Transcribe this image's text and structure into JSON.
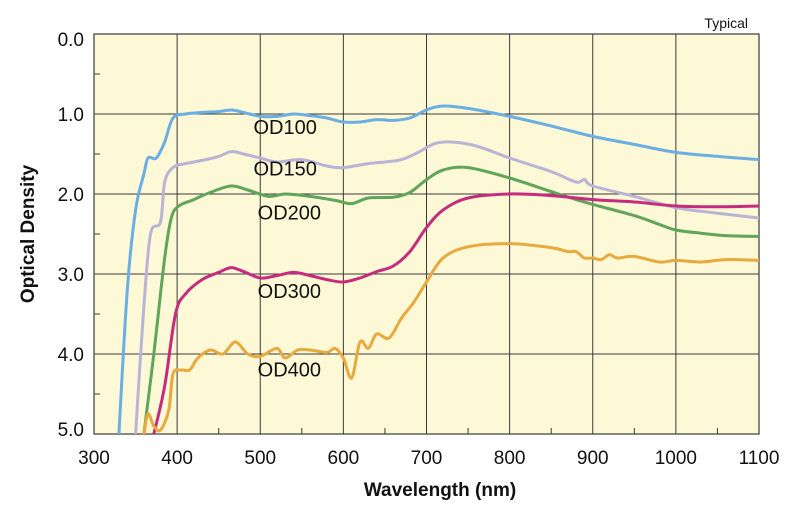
{
  "chart_data": {
    "type": "line",
    "title": "",
    "annotation": "Typical",
    "xlabel": "Wavelength (nm)",
    "ylabel": "Optical Density",
    "xlim": [
      300,
      1100
    ],
    "ylim": [
      0,
      5
    ],
    "y_inverted": true,
    "grid": true,
    "x_ticks": [
      "300",
      "400",
      "500",
      "600",
      "700",
      "800",
      "900",
      "1000",
      "1100"
    ],
    "x_tick_values": [
      300,
      400,
      500,
      600,
      700,
      800,
      900,
      1000,
      1100
    ],
    "y_ticks": [
      "0.0",
      "1.0",
      "2.0",
      "3.0",
      "4.0",
      "5.0"
    ],
    "y_tick_values": [
      0,
      1,
      2,
      3,
      4,
      5
    ],
    "series": [
      {
        "name": "OD100",
        "label_anchor": [
          530,
          1.25
        ],
        "color": "#6aaee3",
        "points": [
          [
            330,
            5.0
          ],
          [
            340,
            3.2
          ],
          [
            350,
            2.2
          ],
          [
            360,
            1.75
          ],
          [
            365,
            1.55
          ],
          [
            375,
            1.55
          ],
          [
            385,
            1.35
          ],
          [
            395,
            1.05
          ],
          [
            410,
            1.0
          ],
          [
            430,
            0.98
          ],
          [
            450,
            0.97
          ],
          [
            465,
            0.95
          ],
          [
            480,
            0.98
          ],
          [
            500,
            1.03
          ],
          [
            520,
            1.03
          ],
          [
            540,
            1.0
          ],
          [
            560,
            1.02
          ],
          [
            580,
            1.05
          ],
          [
            600,
            1.1
          ],
          [
            620,
            1.1
          ],
          [
            640,
            1.07
          ],
          [
            660,
            1.08
          ],
          [
            680,
            1.05
          ],
          [
            700,
            0.95
          ],
          [
            720,
            0.9
          ],
          [
            750,
            0.93
          ],
          [
            800,
            1.03
          ],
          [
            850,
            1.15
          ],
          [
            900,
            1.28
          ],
          [
            950,
            1.38
          ],
          [
            1000,
            1.48
          ],
          [
            1050,
            1.53
          ],
          [
            1100,
            1.57
          ]
        ]
      },
      {
        "name": "OD150",
        "label_anchor": [
          530,
          1.77
        ],
        "color": "#b9b4d6",
        "points": [
          [
            350,
            5.0
          ],
          [
            360,
            3.4
          ],
          [
            368,
            2.5
          ],
          [
            380,
            2.35
          ],
          [
            385,
            1.85
          ],
          [
            395,
            1.67
          ],
          [
            410,
            1.62
          ],
          [
            430,
            1.58
          ],
          [
            450,
            1.53
          ],
          [
            465,
            1.47
          ],
          [
            480,
            1.5
          ],
          [
            500,
            1.55
          ],
          [
            520,
            1.6
          ],
          [
            550,
            1.57
          ],
          [
            580,
            1.65
          ],
          [
            600,
            1.67
          ],
          [
            630,
            1.62
          ],
          [
            650,
            1.6
          ],
          [
            670,
            1.57
          ],
          [
            690,
            1.48
          ],
          [
            710,
            1.37
          ],
          [
            730,
            1.35
          ],
          [
            760,
            1.4
          ],
          [
            800,
            1.55
          ],
          [
            850,
            1.72
          ],
          [
            880,
            1.85
          ],
          [
            890,
            1.82
          ],
          [
            900,
            1.9
          ],
          [
            950,
            2.03
          ],
          [
            1000,
            2.17
          ],
          [
            1050,
            2.24
          ],
          [
            1100,
            2.3
          ]
        ]
      },
      {
        "name": "OD200",
        "label_anchor": [
          535,
          2.32
        ],
        "color": "#5fa55a",
        "points": [
          [
            360,
            5.0
          ],
          [
            372,
            4.0
          ],
          [
            385,
            2.8
          ],
          [
            393,
            2.3
          ],
          [
            402,
            2.15
          ],
          [
            420,
            2.07
          ],
          [
            440,
            1.98
          ],
          [
            465,
            1.9
          ],
          [
            485,
            1.95
          ],
          [
            510,
            2.03
          ],
          [
            530,
            2.0
          ],
          [
            560,
            2.03
          ],
          [
            590,
            2.08
          ],
          [
            610,
            2.12
          ],
          [
            630,
            2.05
          ],
          [
            660,
            2.04
          ],
          [
            680,
            1.98
          ],
          [
            700,
            1.82
          ],
          [
            720,
            1.7
          ],
          [
            750,
            1.67
          ],
          [
            800,
            1.8
          ],
          [
            850,
            1.97
          ],
          [
            880,
            2.07
          ],
          [
            900,
            2.13
          ],
          [
            950,
            2.27
          ],
          [
            980,
            2.38
          ],
          [
            1000,
            2.45
          ],
          [
            1030,
            2.49
          ],
          [
            1060,
            2.52
          ],
          [
            1100,
            2.53
          ]
        ]
      },
      {
        "name": "OD300",
        "label_anchor": [
          535,
          3.3
        ],
        "color": "#c62c7d",
        "points": [
          [
            372,
            5.0
          ],
          [
            385,
            4.4
          ],
          [
            398,
            3.5
          ],
          [
            410,
            3.25
          ],
          [
            430,
            3.07
          ],
          [
            450,
            2.98
          ],
          [
            465,
            2.92
          ],
          [
            480,
            2.97
          ],
          [
            500,
            3.05
          ],
          [
            520,
            3.02
          ],
          [
            540,
            2.98
          ],
          [
            560,
            3.02
          ],
          [
            580,
            3.07
          ],
          [
            600,
            3.1
          ],
          [
            620,
            3.05
          ],
          [
            640,
            2.97
          ],
          [
            660,
            2.9
          ],
          [
            680,
            2.72
          ],
          [
            700,
            2.42
          ],
          [
            720,
            2.2
          ],
          [
            750,
            2.05
          ],
          [
            800,
            2.0
          ],
          [
            850,
            2.02
          ],
          [
            900,
            2.07
          ],
          [
            950,
            2.1
          ],
          [
            1000,
            2.15
          ],
          [
            1050,
            2.16
          ],
          [
            1100,
            2.15
          ]
        ]
      },
      {
        "name": "OD400",
        "label_anchor": [
          535,
          4.28
        ],
        "color": "#e8a93e",
        "points": [
          [
            360,
            5.0
          ],
          [
            365,
            4.75
          ],
          [
            372,
            4.9
          ],
          [
            380,
            4.95
          ],
          [
            390,
            4.7
          ],
          [
            395,
            4.25
          ],
          [
            405,
            4.2
          ],
          [
            415,
            4.2
          ],
          [
            425,
            4.05
          ],
          [
            440,
            3.95
          ],
          [
            455,
            4.0
          ],
          [
            470,
            3.85
          ],
          [
            485,
            4.0
          ],
          [
            500,
            4.03
          ],
          [
            520,
            3.93
          ],
          [
            530,
            4.05
          ],
          [
            545,
            3.95
          ],
          [
            560,
            3.95
          ],
          [
            580,
            3.98
          ],
          [
            590,
            3.93
          ],
          [
            600,
            4.05
          ],
          [
            610,
            4.3
          ],
          [
            620,
            3.85
          ],
          [
            630,
            3.93
          ],
          [
            640,
            3.75
          ],
          [
            655,
            3.8
          ],
          [
            670,
            3.55
          ],
          [
            685,
            3.35
          ],
          [
            700,
            3.1
          ],
          [
            720,
            2.8
          ],
          [
            750,
            2.66
          ],
          [
            800,
            2.62
          ],
          [
            850,
            2.67
          ],
          [
            870,
            2.72
          ],
          [
            880,
            2.72
          ],
          [
            890,
            2.8
          ],
          [
            900,
            2.8
          ],
          [
            910,
            2.82
          ],
          [
            920,
            2.76
          ],
          [
            930,
            2.8
          ],
          [
            950,
            2.78
          ],
          [
            980,
            2.85
          ],
          [
            1000,
            2.83
          ],
          [
            1030,
            2.85
          ],
          [
            1060,
            2.82
          ],
          [
            1100,
            2.83
          ]
        ]
      }
    ]
  }
}
